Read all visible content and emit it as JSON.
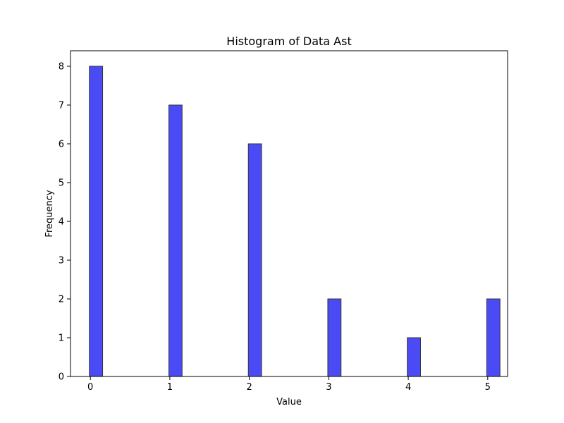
{
  "chart_data": {
    "type": "bar",
    "title": "Histogram of Data Ast",
    "xlabel": "Value",
    "ylabel": "Frequency",
    "x": [
      0,
      1,
      2,
      3,
      4,
      5
    ],
    "values": [
      8,
      7,
      6,
      2,
      1,
      2
    ],
    "xlim": [
      -0.25,
      5.25
    ],
    "ylim": [
      0,
      8.4
    ],
    "xticks": [
      0,
      1,
      2,
      3,
      4,
      5
    ],
    "yticks": [
      0,
      1,
      2,
      3,
      4,
      5,
      6,
      7,
      8
    ],
    "bar_width": 0.1667,
    "bar_color": "#4b4bf5",
    "edge_color": "#333333",
    "grid": false,
    "legend": false
  }
}
